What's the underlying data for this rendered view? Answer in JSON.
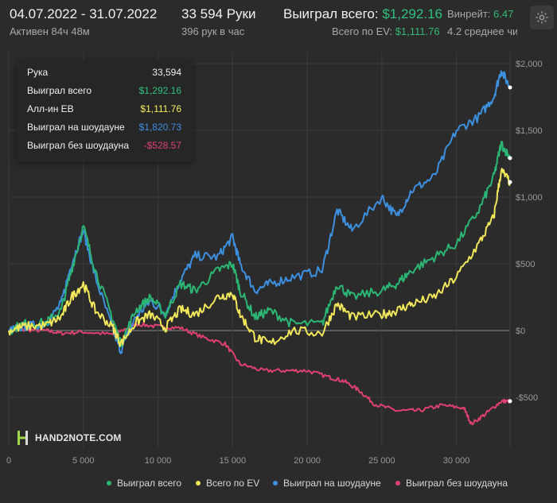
{
  "header": {
    "date_range": "04.07.2022 - 31.07.2022",
    "hands_count": "33 594 Руки",
    "won_label": "Выиграл всего:",
    "won_value": "$1,292.16",
    "winrate_label": "Винрейт:",
    "winrate_value": "6.47",
    "active_time": "Активен 84ч 48м",
    "hands_per_hour": "396 рук в час",
    "ev_label": "Всего по EV:",
    "ev_value": "$1,111.76",
    "avg_tables": "4.2 среднее чи"
  },
  "tooltip": {
    "rows": [
      {
        "label": "Рука",
        "value": "33,594",
        "color": "#f0f0f0"
      },
      {
        "label": "Выиграл всего",
        "value": "$1,292.16",
        "color": "#2ec27e"
      },
      {
        "label": "Алл-ин EB",
        "value": "$1,111.76",
        "color": "#f5ee5b"
      },
      {
        "label": "Выиграл на шоудауне",
        "value": "$1,820.73",
        "color": "#3d8fe0"
      },
      {
        "label": "Выиграл без шоудауна",
        "value": "-$528.57",
        "color": "#e0406f"
      }
    ]
  },
  "logo": {
    "text": "HAND2NOTE.COM"
  },
  "legend": [
    {
      "label": "Выиграл всего",
      "color": "#2bb673"
    },
    {
      "label": "Всего по EV",
      "color": "#f2e85a"
    },
    {
      "label": "Выиграл на шоудауне",
      "color": "#3d8fe0"
    },
    {
      "label": "Выиграл без шоудауна",
      "color": "#e0406f"
    }
  ],
  "chart_data": {
    "type": "line",
    "title": "",
    "xlabel": "",
    "ylabel": "",
    "xlim": [
      0,
      33594
    ],
    "ylim": [
      -700,
      2000
    ],
    "x_ticks": [
      0,
      5000,
      10000,
      15000,
      20000,
      25000,
      30000
    ],
    "x_tick_labels": [
      "0",
      "5 000",
      "10 000",
      "15 000",
      "20 000",
      "25 000",
      "30 000"
    ],
    "y_ticks": [
      -500,
      0,
      500,
      1000,
      1500,
      2000
    ],
    "y_tick_labels": [
      "-$500",
      "$0",
      "$500",
      "$1,000",
      "$1,500",
      "$2,000"
    ],
    "grid": true,
    "series": [
      {
        "name": "Выиграл всего",
        "color": "#2bb673",
        "x": [
          0,
          1000,
          2500,
          3500,
          4200,
          5000,
          5800,
          7000,
          7500,
          8500,
          9500,
          10500,
          11500,
          12500,
          14000,
          15000,
          15500,
          16500,
          17500,
          19000,
          21000,
          22000,
          23000,
          25000,
          26000,
          27000,
          28500,
          30000,
          31500,
          32500,
          33000,
          33594
        ],
        "y": [
          0,
          50,
          60,
          150,
          450,
          780,
          450,
          80,
          -100,
          150,
          250,
          120,
          350,
          300,
          450,
          500,
          300,
          100,
          150,
          50,
          50,
          350,
          250,
          300,
          350,
          450,
          550,
          650,
          900,
          1150,
          1400,
          1292
        ]
      },
      {
        "name": "Всего по EV",
        "color": "#f2e85a",
        "x": [
          0,
          1000,
          2500,
          3500,
          4200,
          5000,
          5800,
          7000,
          7500,
          8500,
          9500,
          10500,
          11500,
          12500,
          14000,
          15000,
          15500,
          16500,
          17500,
          19000,
          21000,
          22000,
          23000,
          25000,
          26000,
          27000,
          28500,
          30000,
          31500,
          32500,
          33000,
          33594
        ],
        "y": [
          0,
          30,
          40,
          100,
          250,
          350,
          150,
          20,
          -100,
          60,
          120,
          20,
          160,
          120,
          250,
          280,
          120,
          -50,
          -100,
          0,
          -20,
          200,
          100,
          120,
          150,
          200,
          250,
          400,
          650,
          850,
          1200,
          1112
        ]
      },
      {
        "name": "Выиграл на шоудауне",
        "color": "#3d8fe0",
        "x": [
          0,
          1000,
          2500,
          3500,
          4200,
          5000,
          5800,
          7000,
          7500,
          8500,
          9500,
          10500,
          11500,
          12500,
          14000,
          15000,
          15500,
          16500,
          17500,
          19000,
          21000,
          22000,
          23000,
          25000,
          26000,
          27000,
          28500,
          30000,
          31500,
          32500,
          33000,
          33594
        ],
        "y": [
          0,
          30,
          50,
          200,
          500,
          750,
          400,
          0,
          -150,
          100,
          220,
          130,
          380,
          560,
          550,
          700,
          500,
          300,
          350,
          400,
          450,
          900,
          750,
          1000,
          850,
          1050,
          1150,
          1500,
          1600,
          1750,
          1950,
          1821
        ]
      },
      {
        "name": "Выиграл без шоудауна",
        "color": "#e0406f",
        "x": [
          0,
          1000,
          2500,
          3500,
          5000,
          7000,
          8500,
          10000,
          11500,
          13000,
          14500,
          15500,
          17000,
          18500,
          20000,
          21500,
          22500,
          23500,
          24500,
          26000,
          27500,
          29000,
          30500,
          31000,
          32000,
          33000,
          33594
        ],
        "y": [
          0,
          5,
          0,
          -20,
          -10,
          -30,
          50,
          30,
          20,
          -50,
          -100,
          -250,
          -300,
          -300,
          -300,
          -350,
          -380,
          -450,
          -550,
          -600,
          -600,
          -560,
          -580,
          -700,
          -620,
          -530,
          -529
        ]
      }
    ]
  }
}
